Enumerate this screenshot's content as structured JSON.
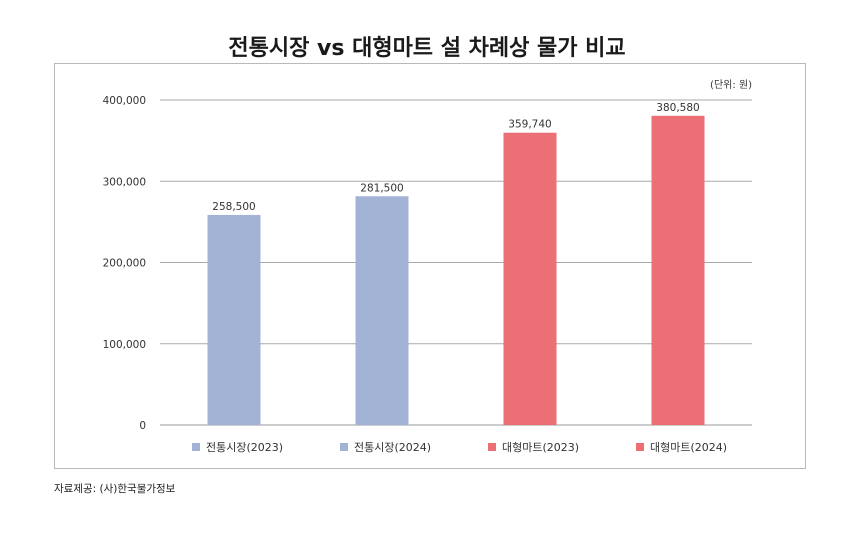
{
  "title": "전통시장 vs 대형마트 설 차례상 물가 비교",
  "source": "자료제공: (사)한국물가정보",
  "chart_data": {
    "type": "bar",
    "unit_label": "(단위: 원)",
    "categories": [
      "전통시장(2023)",
      "전통시장(2024)",
      "대형마트(2023)",
      "대형마트(2024)"
    ],
    "values": [
      258500,
      281500,
      359740,
      380580
    ],
    "value_labels": [
      "258,500",
      "281,500",
      "359,740",
      "380,580"
    ],
    "colors": [
      "#a3b3d6",
      "#a3b3d6",
      "#ec6f76",
      "#ec6f76"
    ],
    "ylim": [
      0,
      400000
    ],
    "yticks": [
      0,
      100000,
      200000,
      300000,
      400000
    ],
    "ytick_labels": [
      "0",
      "100,000",
      "200,000",
      "300,000",
      "400,000"
    ],
    "grid": true,
    "legend": "bottom"
  }
}
